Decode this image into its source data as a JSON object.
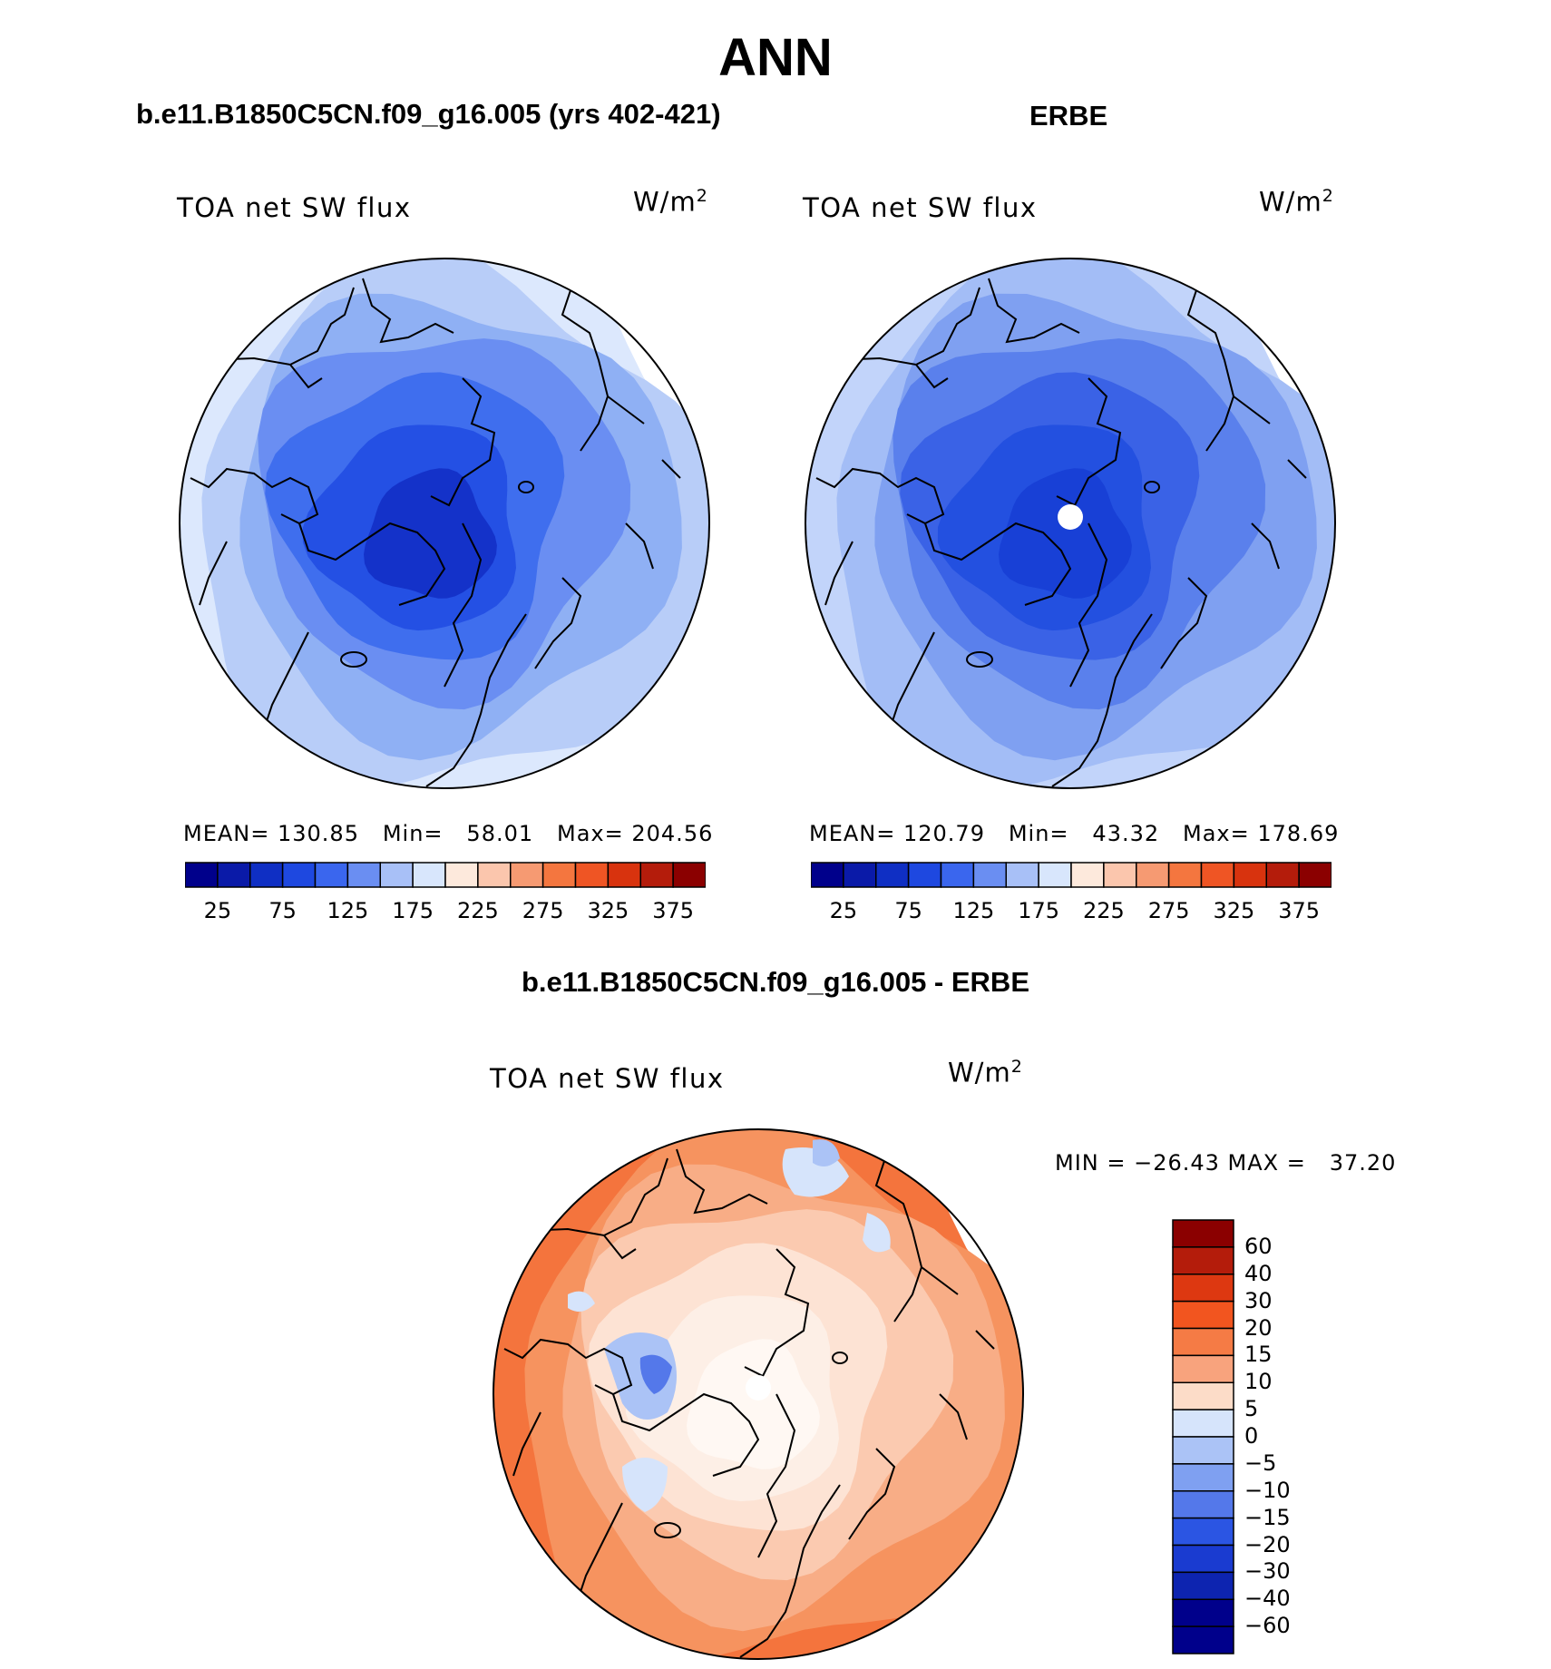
{
  "header": {
    "main_title": "ANN",
    "left_case": "b.e11.B1850C5CN.f09_g16.005 (yrs 402-421)",
    "right_case": "ERBE",
    "diff_case": "b.e11.B1850C5CN.f09_g16.005 - ERBE"
  },
  "panels": {
    "model": {
      "variable": "TOA net SW flux",
      "units": "W/m",
      "units_sup": "2",
      "stats": "MEAN= 130.85   Min=   58.01   Max= 204.56"
    },
    "obs": {
      "variable": "TOA net SW flux",
      "units": "W/m",
      "units_sup": "2",
      "stats": "MEAN= 120.79   Min=   43.32   Max= 178.69"
    },
    "diff": {
      "variable": "TOA net SW flux",
      "units": "W/m",
      "units_sup": "2",
      "stats": "MIN = −26.43 MAX =   37.20"
    }
  },
  "colorbars": {
    "abs": {
      "colors": [
        "#00008b",
        "#0a1aa8",
        "#0f2fc4",
        "#1e48e0",
        "#3a66ee",
        "#6a8ef2",
        "#a8c0f7",
        "#d8e6fc",
        "#fde9dc",
        "#fbc6ad",
        "#f69a72",
        "#f4763f",
        "#ef5524",
        "#d8330e",
        "#b41c0b",
        "#8b0000"
      ],
      "labels": [
        "25",
        "75",
        "125",
        "175",
        "225",
        "275",
        "325",
        "375"
      ]
    },
    "diff": {
      "colors": [
        "#8b0000",
        "#b41c0b",
        "#dd3811",
        "#f2551f",
        "#f57b45",
        "#f8a37d",
        "#fcdcc8",
        "#d6e4fb",
        "#abc3f6",
        "#7fa0f1",
        "#5478ea",
        "#2b55e3",
        "#1a3bd0",
        "#0d24b0",
        "#00008b"
      ],
      "labels": [
        "60",
        "40",
        "30",
        "20",
        "15",
        "10",
        "5",
        "0",
        "−5",
        "−10",
        "−15",
        "−20",
        "−30",
        "−40",
        "−60"
      ]
    }
  },
  "maps": {
    "model": {
      "bands": [
        "#dce8fd",
        "#b8cdf8",
        "#8fb0f4",
        "#6a8ef2",
        "#3f6eee",
        "#2450e4",
        "#1432c9"
      ],
      "pole_hole": false
    },
    "obs": {
      "bands": [
        "#c2d4fa",
        "#a3bdf6",
        "#7fa0f1",
        "#5a80ec",
        "#3a62e6",
        "#2350e0",
        "#1840d6"
      ],
      "pole_hole": true
    },
    "diff": {
      "bands": [
        "#f4743d",
        "#f6935f",
        "#f8ad86",
        "#fbcab0",
        "#fde3d4",
        "#fdefe6",
        "#fff8f3"
      ],
      "pole_hole": true
    }
  }
}
